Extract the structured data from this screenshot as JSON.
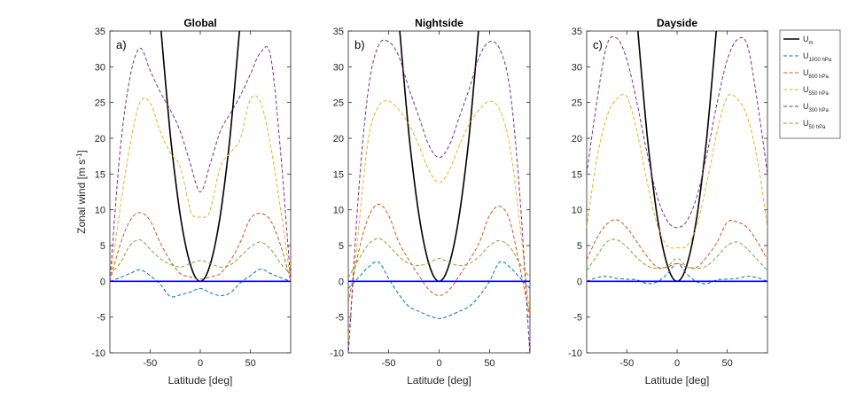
{
  "chart_data": {
    "type": "line",
    "ylabel": "Zonal wind [m s",
    "ylabel_sup": "-1",
    "ylabel_end": "]",
    "xlabel": "Latitude [deg]",
    "xlim": [
      -90,
      90
    ],
    "ylim": [
      -12,
      35
    ],
    "xticks": [
      "-50",
      "0",
      "50"
    ],
    "xtick_values": [
      -50,
      0,
      50
    ],
    "yticks": [
      "-10",
      "-5",
      "0",
      "5",
      "10",
      "15",
      "20",
      "25",
      "30",
      "35"
    ],
    "ytick_values": [
      -10,
      -5,
      0,
      5,
      10,
      15,
      20,
      25,
      30,
      35
    ],
    "colors": {
      "U_m": "#000000",
      "U_1000": "#0072BD",
      "U_800": "#D95319",
      "U_550": "#EDB120",
      "U_300": "#7E2F8E",
      "U_50": "#77AC30",
      "zero": "#0000ff"
    },
    "legend": {
      "position": "top-right-outside",
      "entries": [
        {
          "key": "U_m",
          "base": "U",
          "sub": "m",
          "dashed": false
        },
        {
          "key": "U_1000",
          "base": "U",
          "sub": "1000 hPa",
          "dashed": true
        },
        {
          "key": "U_800",
          "base": "U",
          "sub": "800 hPa",
          "dashed": true
        },
        {
          "key": "U_550",
          "base": "U",
          "sub": "550 hPa",
          "dashed": true
        },
        {
          "key": "U_300",
          "base": "U",
          "sub": "300 hPa",
          "dashed": true
        },
        {
          "key": "U_50",
          "base": "U",
          "sub": "50 hPa",
          "dashed": true
        }
      ]
    },
    "panels": [
      {
        "title": "Global",
        "label": "a)",
        "series": [
          {
            "key": "U_m",
            "x": [
              -39,
              -35,
              -30,
              -25,
              -20,
              -15,
              -10,
              -5,
              0,
              5,
              10,
              15,
              20,
              25,
              30,
              35,
              39
            ],
            "y": [
              35,
              28.5,
              20.7,
              14.5,
              9.3,
              5.3,
              2.4,
              0.6,
              0,
              0.6,
              2.4,
              5.3,
              9.3,
              14.5,
              20.7,
              28.5,
              35
            ]
          },
          {
            "key": "U_1000",
            "x": [
              -90,
              -80,
              -70,
              -60,
              -50,
              -40,
              -30,
              -20,
              -10,
              0,
              10,
              20,
              30,
              40,
              50,
              60,
              70,
              80,
              90
            ],
            "y": [
              0,
              0.5,
              1.1,
              1.6,
              0.8,
              -0.4,
              -2.1,
              -1.9,
              -1.5,
              -1,
              -1.6,
              -2,
              -1.6,
              -0.2,
              0.8,
              1.7,
              1.1,
              0.5,
              0
            ]
          },
          {
            "key": "U_800",
            "x": [
              -90,
              -80,
              -70,
              -60,
              -50,
              -40,
              -30,
              -20,
              -10,
              0,
              10,
              20,
              30,
              40,
              50,
              60,
              70,
              80,
              90
            ],
            "y": [
              0,
              5,
              8.5,
              9.6,
              8.5,
              5.4,
              2.9,
              1.1,
              0.6,
              0.3,
              0.6,
              1.1,
              2.9,
              5.5,
              8.8,
              9.5,
              8.5,
              5,
              0
            ]
          },
          {
            "key": "U_550",
            "x": [
              -90,
              -80,
              -70,
              -60,
              -50,
              -40,
              -30,
              -20,
              -10,
              -5,
              0,
              5,
              10,
              20,
              30,
              40,
              50,
              60,
              70,
              80,
              90
            ],
            "y": [
              0,
              10,
              19,
              25,
              25,
              21,
              18,
              16,
              10,
              9,
              9,
              9,
              10,
              16,
              18,
              20,
              25.5,
              25,
              19,
              10,
              0
            ]
          },
          {
            "key": "U_300",
            "x": [
              -90,
              -80,
              -70,
              -60,
              -50,
              -40,
              -30,
              -20,
              -10,
              0,
              10,
              20,
              30,
              40,
              50,
              60,
              70,
              80,
              90
            ],
            "y": [
              0,
              18,
              28.5,
              32.6,
              29.5,
              26.5,
              24,
              21,
              16.5,
              12.5,
              16.5,
              21,
              23.5,
              26,
              29,
              32,
              31.5,
              18,
              0
            ]
          },
          {
            "key": "U_50",
            "x": [
              -90,
              -80,
              -70,
              -60,
              -50,
              -40,
              -30,
              -20,
              -10,
              0,
              10,
              20,
              30,
              40,
              50,
              60,
              70,
              80,
              90
            ],
            "y": [
              1,
              2.5,
              5,
              5.8,
              4.5,
              3.2,
              2.4,
              2,
              2.5,
              2.9,
              2.5,
              2,
              2.3,
              3.5,
              4.8,
              5.5,
              4.5,
              2.5,
              1
            ]
          }
        ]
      },
      {
        "title": "Nightside",
        "label": "b)",
        "series": [
          {
            "key": "U_m",
            "x": [
              -39,
              -35,
              -30,
              -25,
              -20,
              -15,
              -10,
              -5,
              0,
              5,
              10,
              15,
              20,
              25,
              30,
              35,
              39
            ],
            "y": [
              35,
              28.5,
              20.7,
              14.5,
              9.3,
              5.3,
              2.4,
              0.6,
              0,
              0.6,
              2.4,
              5.3,
              9.3,
              14.5,
              20.7,
              28.5,
              35
            ]
          },
          {
            "key": "U_1000",
            "x": [
              -90,
              -80,
              -70,
              -60,
              -50,
              -40,
              -30,
              -20,
              -10,
              0,
              10,
              20,
              30,
              40,
              50,
              60,
              70,
              80,
              90
            ],
            "y": [
              -1,
              0.5,
              2,
              2.7,
              0.4,
              -1.8,
              -3.5,
              -4.2,
              -4.8,
              -5.2,
              -4.8,
              -4.2,
              -3.5,
              -2,
              0,
              2.7,
              2,
              0.5,
              -1
            ]
          },
          {
            "key": "U_800",
            "x": [
              -90,
              -80,
              -70,
              -60,
              -50,
              -40,
              -30,
              -20,
              -10,
              0,
              10,
              20,
              30,
              40,
              50,
              60,
              70,
              80,
              90
            ],
            "y": [
              -3,
              4,
              9,
              10.8,
              9.2,
              5.5,
              3,
              0.8,
              -1.2,
              -2,
              -1.2,
              0.8,
              3,
              5.5,
              9.2,
              10.5,
              8.5,
              2,
              -5
            ]
          },
          {
            "key": "U_550",
            "x": [
              -90,
              -80,
              -70,
              -60,
              -50,
              -40,
              -30,
              -20,
              -10,
              0,
              10,
              20,
              30,
              40,
              50,
              60,
              70,
              80,
              90
            ],
            "y": [
              -8,
              7,
              20,
              24.5,
              25.2,
              24,
              22,
              19,
              15.5,
              13.8,
              15.5,
              19,
              22,
              24,
              25.2,
              24,
              19,
              8,
              -5
            ]
          },
          {
            "key": "U_300",
            "x": [
              -90,
              -80,
              -70,
              -60,
              -50,
              -40,
              -30,
              -20,
              -10,
              0,
              10,
              20,
              30,
              40,
              50,
              60,
              70,
              80,
              90
            ],
            "y": [
              -10.5,
              12,
              27,
              33,
              33.5,
              31.5,
              27,
              23,
              19,
              17.3,
              19,
              23,
              27,
              31.5,
              33.5,
              32.5,
              27,
              12,
              -10.5
            ]
          },
          {
            "key": "U_50",
            "x": [
              -90,
              -80,
              -70,
              -60,
              -50,
              -40,
              -30,
              -20,
              -10,
              0,
              10,
              20,
              30,
              40,
              50,
              60,
              70,
              80,
              90
            ],
            "y": [
              0.5,
              3,
              5.2,
              6,
              5,
              3.5,
              2.5,
              2.2,
              2.6,
              3.2,
              2.6,
              2.2,
              2.5,
              3.5,
              5,
              5.7,
              4.8,
              2.5,
              0.5
            ]
          }
        ]
      },
      {
        "title": "Dayside",
        "label": "c)",
        "series": [
          {
            "key": "U_m",
            "x": [
              -39,
              -35,
              -30,
              -25,
              -20,
              -15,
              -10,
              -5,
              0,
              5,
              10,
              15,
              20,
              25,
              30,
              35,
              39
            ],
            "y": [
              35,
              28.5,
              20.7,
              14.5,
              9.3,
              5.3,
              2.4,
              0.6,
              0,
              0.6,
              2.4,
              5.3,
              9.3,
              14.5,
              20.7,
              28.5,
              35
            ]
          },
          {
            "key": "U_1000",
            "x": [
              -90,
              -80,
              -70,
              -60,
              -50,
              -40,
              -30,
              -20,
              -10,
              0,
              10,
              20,
              30,
              40,
              50,
              60,
              70,
              80,
              90
            ],
            "y": [
              0,
              0.5,
              0.7,
              0.4,
              0.3,
              0.2,
              -0.3,
              -0.1,
              1,
              2.5,
              1,
              -0.1,
              -0.3,
              0.2,
              0.3,
              0.4,
              0.7,
              0.5,
              0
            ]
          },
          {
            "key": "U_800",
            "x": [
              -90,
              -80,
              -70,
              -60,
              -50,
              -40,
              -30,
              -20,
              -10,
              0,
              10,
              20,
              30,
              40,
              50,
              60,
              70,
              80,
              90
            ],
            "y": [
              3,
              6,
              8,
              8.6,
              7.5,
              5.5,
              3.5,
              2,
              2,
              2.5,
              2,
              2,
              3.5,
              5.5,
              8.3,
              8.3,
              7.5,
              5.5,
              3
            ]
          },
          {
            "key": "U_550",
            "x": [
              -90,
              -80,
              -70,
              -60,
              -50,
              -40,
              -30,
              -20,
              -10,
              0,
              10,
              20,
              30,
              40,
              50,
              60,
              70,
              80,
              90
            ],
            "y": [
              7.5,
              17,
              23,
              25.5,
              25.8,
              21,
              14,
              8,
              5,
              4.7,
              5,
              8,
              14,
              21,
              25.8,
              25.5,
              23,
              17,
              7.5
            ]
          },
          {
            "key": "U_300",
            "x": [
              -90,
              -80,
              -70,
              -60,
              -50,
              -40,
              -30,
              -20,
              -10,
              0,
              10,
              20,
              30,
              40,
              50,
              60,
              70,
              80,
              90
            ],
            "y": [
              15,
              25,
              33,
              34,
              31,
              25,
              18,
              12,
              8.5,
              7.5,
              8.5,
              12,
              18,
              25,
              31,
              33.8,
              33,
              25,
              15
            ]
          },
          {
            "key": "U_50",
            "x": [
              -90,
              -80,
              -70,
              -60,
              -50,
              -40,
              -30,
              -20,
              -10,
              0,
              10,
              20,
              30,
              40,
              50,
              60,
              70,
              80,
              90
            ],
            "y": [
              1.5,
              3.5,
              5.5,
              5.8,
              4.8,
              3.3,
              2.2,
              1.8,
              2,
              3.2,
              2,
              1.8,
              2.2,
              3.5,
              5,
              5.5,
              4.5,
              3,
              1.5
            ]
          }
        ]
      }
    ]
  }
}
